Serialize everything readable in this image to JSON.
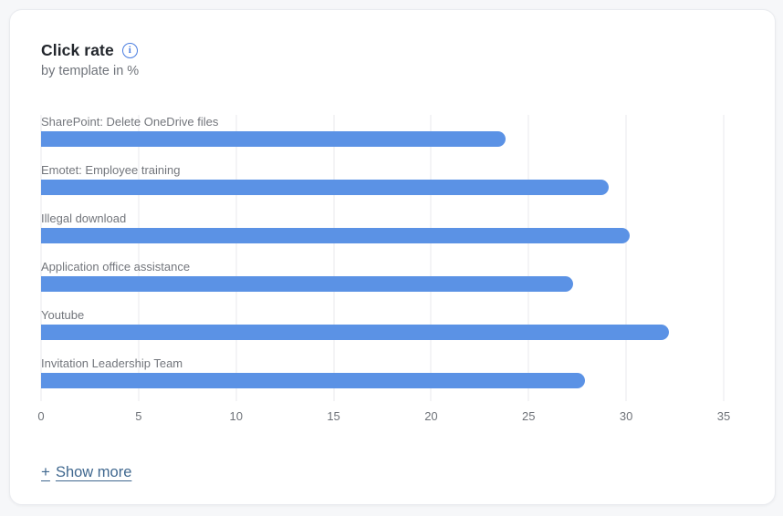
{
  "card": {
    "title": "Click rate",
    "subtitle": "by template in %"
  },
  "chart_data": {
    "type": "bar",
    "orientation": "horizontal",
    "title": "Click rate",
    "subtitle": "by template in %",
    "categories": [
      "SharePoint: Delete OneDrive files",
      "Emotet: Employee training",
      "Illegal download",
      "Application office assistance",
      "Youtube",
      "Invitation Leadership Team"
    ],
    "values": [
      23.8,
      29.1,
      30.2,
      27.3,
      32.2,
      27.9
    ],
    "xlabel": "",
    "ylabel": "",
    "xlim": [
      0,
      35
    ],
    "xticks": [
      0,
      5,
      10,
      15,
      20,
      25,
      30,
      35
    ],
    "grid": true,
    "legend": "none",
    "bar_color": "#5b92e5"
  },
  "footer": {
    "plus_sign": "+",
    "show_more_label": "Show more"
  },
  "colors": {
    "bar": "#5b92e5",
    "info_icon": "#4a7de0",
    "gridline": "#e9eaed",
    "label_text": "#73767c",
    "axis_text": "#6e7278",
    "show_more_link": "#40688f",
    "card_background": "#ffffff",
    "page_background": "#f6f7f9"
  }
}
